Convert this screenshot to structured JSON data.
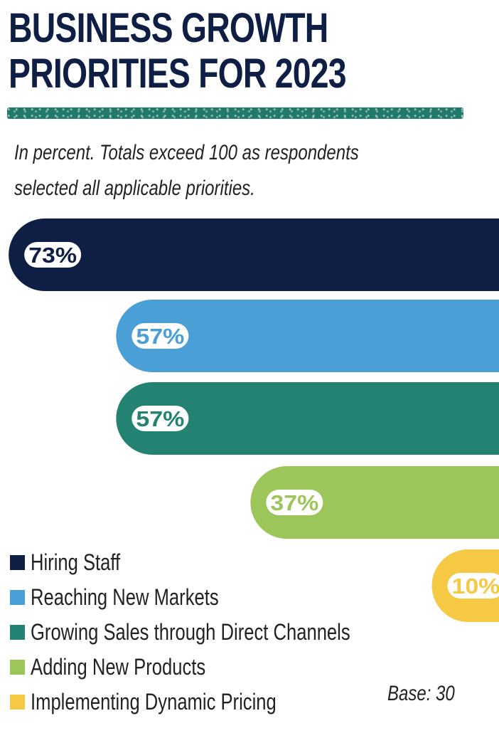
{
  "header": {
    "title": "BUSINESS GROWTH PRIORITIES FOR 2023",
    "subtitle": "In percent. Totals exceed 100 as respondents selected all applicable priorities."
  },
  "footer": {
    "base": "Base: 30"
  },
  "chart_data": {
    "type": "bar",
    "orientation": "horizontal",
    "categories": [
      "Hiring Staff",
      "Reaching New Markets",
      "Growing Sales through Direct Channels",
      "Adding New Products",
      "Implementing Dynamic Pricing"
    ],
    "values": [
      73,
      57,
      57,
      37,
      10
    ],
    "data_labels": [
      "73%",
      "57%",
      "57%",
      "37%",
      "10%"
    ],
    "colors": [
      "#0e1e44",
      "#4a9fd6",
      "#238272",
      "#9cc65a",
      "#f6c944"
    ],
    "unit": "%",
    "legend_position": "bottom-left",
    "title": "BUSINESS GROWTH PRIORITIES FOR 2023",
    "xlabel": "",
    "ylabel": ""
  }
}
